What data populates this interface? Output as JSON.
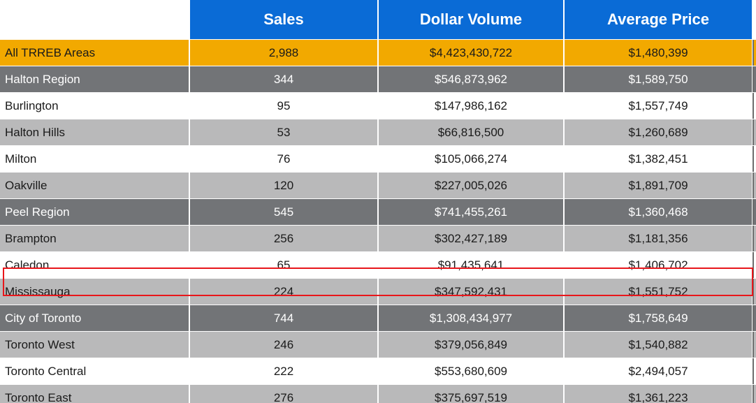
{
  "table": {
    "headers": {
      "area": "",
      "sales": "Sales",
      "dollar_volume": "Dollar Volume",
      "average_price": "Average Price"
    },
    "rows": [
      {
        "area": "All TRREB Areas",
        "sales": "2,988",
        "dollar_volume": "$4,423,430,722",
        "average_price": "$1,480,399",
        "style": "orange"
      },
      {
        "area": "Halton Region",
        "sales": "344",
        "dollar_volume": "$546,873,962",
        "average_price": "$1,589,750",
        "style": "dark"
      },
      {
        "area": "Burlington",
        "sales": "95",
        "dollar_volume": "$147,986,162",
        "average_price": "$1,557,749",
        "style": "white"
      },
      {
        "area": "Halton Hills",
        "sales": "53",
        "dollar_volume": "$66,816,500",
        "average_price": "$1,260,689",
        "style": "light"
      },
      {
        "area": "Milton",
        "sales": "76",
        "dollar_volume": "$105,066,274",
        "average_price": "$1,382,451",
        "style": "white"
      },
      {
        "area": "Oakville",
        "sales": "120",
        "dollar_volume": "$227,005,026",
        "average_price": "$1,891,709",
        "style": "light"
      },
      {
        "area": "Peel Region",
        "sales": "545",
        "dollar_volume": "$741,455,261",
        "average_price": "$1,360,468",
        "style": "dark"
      },
      {
        "area": "Brampton",
        "sales": "256",
        "dollar_volume": "$302,427,189",
        "average_price": "$1,181,356",
        "style": "light"
      },
      {
        "area": "Caledon",
        "sales": "65",
        "dollar_volume": "$91,435,641",
        "average_price": "$1,406,702",
        "style": "white"
      },
      {
        "area": "Mississauga",
        "sales": "224",
        "dollar_volume": "$347,592,431",
        "average_price": "$1,551,752",
        "style": "light",
        "highlighted": true
      },
      {
        "area": "City of Toronto",
        "sales": "744",
        "dollar_volume": "$1,308,434,977",
        "average_price": "$1,758,649",
        "style": "dark"
      },
      {
        "area": "Toronto West",
        "sales": "246",
        "dollar_volume": "$379,056,849",
        "average_price": "$1,540,882",
        "style": "light"
      },
      {
        "area": "Toronto Central",
        "sales": "222",
        "dollar_volume": "$553,680,609",
        "average_price": "$2,494,057",
        "style": "white"
      },
      {
        "area": "Toronto East",
        "sales": "276",
        "dollar_volume": "$375,697,519",
        "average_price": "$1,361,223",
        "style": "light"
      }
    ]
  },
  "colors": {
    "header_blue": "#0a6bd6",
    "total_orange": "#f2a900",
    "region_gray": "#727477",
    "row_light_gray": "#b9b9ba",
    "highlight_red": "#e8161b"
  }
}
